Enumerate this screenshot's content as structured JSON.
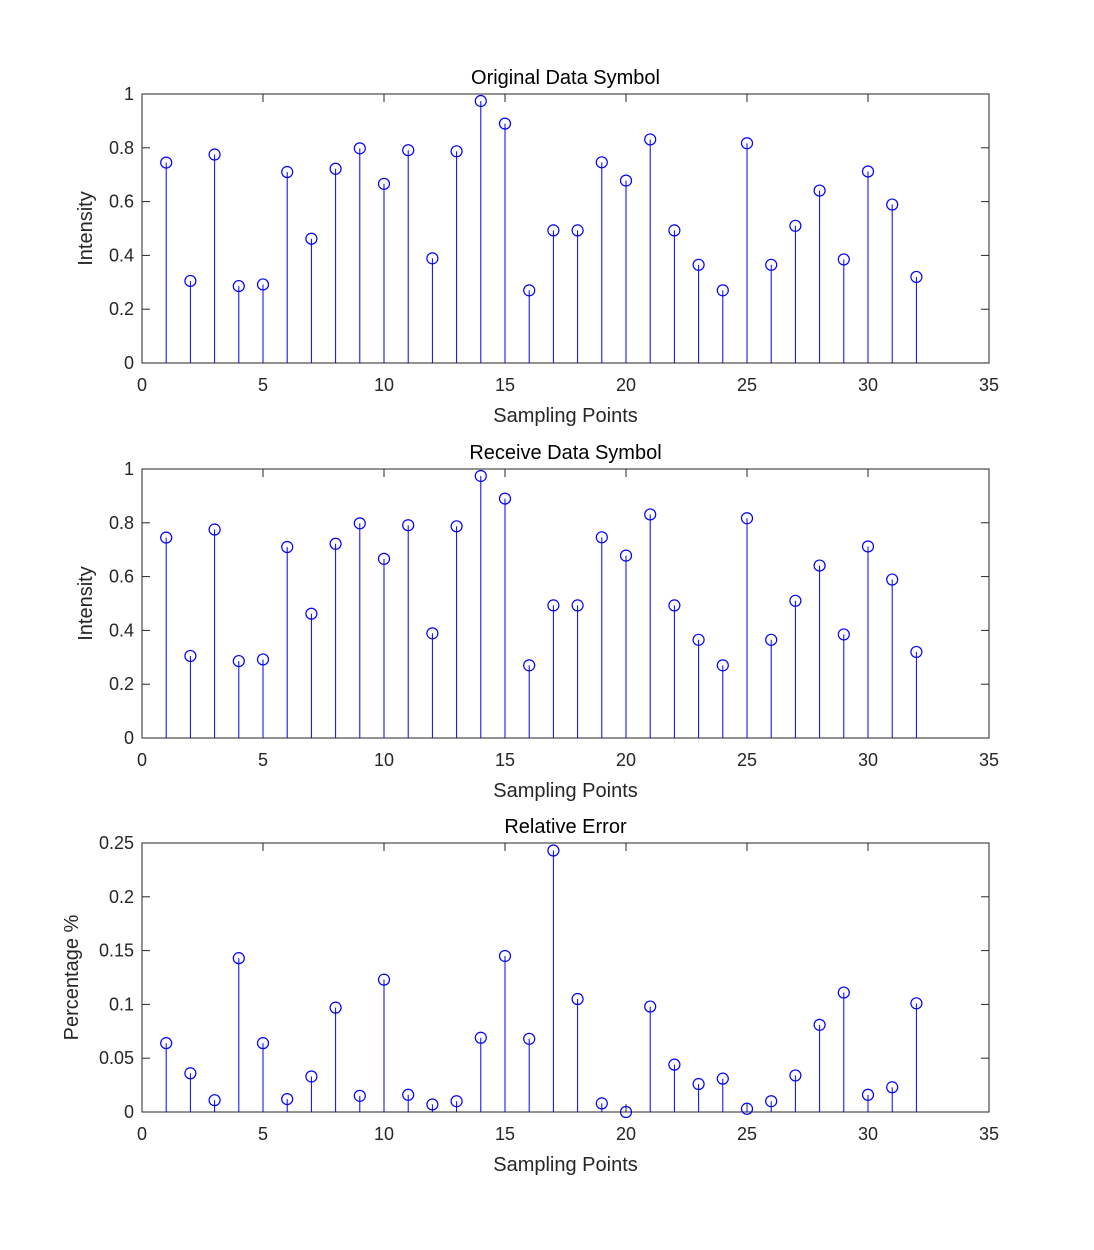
{
  "figure_colors": {
    "stem": "#0000ff",
    "axes": "#262626",
    "background": "#ffffff"
  },
  "chart_data": [
    {
      "type": "stem",
      "title": "Original Data Symbol",
      "xlabel": "Sampling Points",
      "ylabel": "Intensity",
      "xlim": [
        0,
        35
      ],
      "ylim": [
        0,
        1
      ],
      "xticks": [
        0,
        5,
        10,
        15,
        20,
        25,
        30,
        35
      ],
      "yticks": [
        0,
        0.2,
        0.4,
        0.6,
        0.8,
        1
      ],
      "x": [
        1,
        2,
        3,
        4,
        5,
        6,
        7,
        8,
        9,
        10,
        11,
        12,
        13,
        14,
        15,
        16,
        17,
        18,
        19,
        20,
        21,
        22,
        23,
        24,
        25,
        26,
        27,
        28,
        29,
        30,
        31,
        32
      ],
      "values": [
        0.745,
        0.305,
        0.775,
        0.286,
        0.292,
        0.71,
        0.462,
        0.722,
        0.798,
        0.666,
        0.791,
        0.389,
        0.787,
        0.974,
        0.89,
        0.27,
        0.493,
        0.493,
        0.746,
        0.678,
        0.831,
        0.493,
        0.365,
        0.27,
        0.817,
        0.365,
        0.51,
        0.641,
        0.385,
        0.712,
        0.589,
        0.32
      ]
    },
    {
      "type": "stem",
      "title": "Receive Data Symbol",
      "xlabel": "Sampling Points",
      "ylabel": "Intensity",
      "xlim": [
        0,
        35
      ],
      "ylim": [
        0,
        1
      ],
      "xticks": [
        0,
        5,
        10,
        15,
        20,
        25,
        30,
        35
      ],
      "yticks": [
        0,
        0.2,
        0.4,
        0.6,
        0.8,
        1
      ],
      "x": [
        1,
        2,
        3,
        4,
        5,
        6,
        7,
        8,
        9,
        10,
        11,
        12,
        13,
        14,
        15,
        16,
        17,
        18,
        19,
        20,
        21,
        22,
        23,
        24,
        25,
        26,
        27,
        28,
        29,
        30,
        31,
        32
      ],
      "values": [
        0.745,
        0.305,
        0.775,
        0.286,
        0.292,
        0.71,
        0.462,
        0.722,
        0.798,
        0.666,
        0.791,
        0.389,
        0.787,
        0.974,
        0.89,
        0.27,
        0.493,
        0.493,
        0.746,
        0.678,
        0.831,
        0.493,
        0.365,
        0.27,
        0.817,
        0.365,
        0.51,
        0.641,
        0.385,
        0.712,
        0.589,
        0.32
      ]
    },
    {
      "type": "stem",
      "title": "Relative Error",
      "xlabel": "Sampling Points",
      "ylabel": "Percentage %",
      "xlim": [
        0,
        35
      ],
      "ylim": [
        0,
        0.25
      ],
      "xticks": [
        0,
        5,
        10,
        15,
        20,
        25,
        30,
        35
      ],
      "yticks": [
        0,
        0.05,
        0.1,
        0.15,
        0.2,
        0.25
      ],
      "x": [
        1,
        2,
        3,
        4,
        5,
        6,
        7,
        8,
        9,
        10,
        11,
        12,
        13,
        14,
        15,
        16,
        17,
        18,
        19,
        20,
        21,
        22,
        23,
        24,
        25,
        26,
        27,
        28,
        29,
        30,
        31,
        32
      ],
      "values": [
        0.064,
        0.036,
        0.011,
        0.143,
        0.064,
        0.012,
        0.033,
        0.097,
        0.015,
        0.123,
        0.016,
        0.007,
        0.01,
        0.069,
        0.145,
        0.068,
        0.243,
        0.105,
        0.008,
        0.0,
        0.098,
        0.044,
        0.026,
        0.031,
        0.003,
        0.01,
        0.034,
        0.081,
        0.111,
        0.016,
        0.023,
        0.101
      ]
    }
  ]
}
